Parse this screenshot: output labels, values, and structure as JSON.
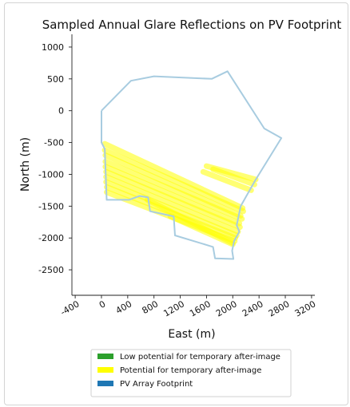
{
  "chart_data": {
    "type": "scatter",
    "title": "Sampled Annual Glare Reflections on PV Footprint",
    "xlabel": "East (m)",
    "ylabel": "North (m)",
    "xlim": [
      -450,
      3250
    ],
    "ylim": [
      -2900,
      1200
    ],
    "xticks": [
      -400,
      0,
      400,
      800,
      1200,
      1600,
      2000,
      2400,
      2800,
      3200
    ],
    "yticks": [
      1000,
      500,
      0,
      -500,
      -1000,
      -1500,
      -2000,
      -2500
    ],
    "grid": false,
    "legend_position": "bottom",
    "legend": [
      {
        "label": "Low potential for temporary after-image",
        "color": "#2ca02c"
      },
      {
        "label": "Potential for temporary after-image",
        "color": "#ffff00"
      },
      {
        "label": "PV Array Footprint",
        "color": "#1f77b4"
      }
    ],
    "footprint": {
      "name": "PV Array Footprint",
      "color": "#a8cce0",
      "points": [
        [
          0,
          0
        ],
        [
          450,
          470
        ],
        [
          800,
          540
        ],
        [
          1680,
          500
        ],
        [
          1920,
          620
        ],
        [
          2480,
          -280
        ],
        [
          2740,
          -430
        ],
        [
          2340,
          -1100
        ],
        [
          2120,
          -1500
        ],
        [
          2060,
          -1800
        ],
        [
          2100,
          -1900
        ],
        [
          2020,
          -2050
        ],
        [
          1990,
          -2200
        ],
        [
          2010,
          -2330
        ],
        [
          1730,
          -2320
        ],
        [
          1700,
          -2140
        ],
        [
          1120,
          -1960
        ],
        [
          1100,
          -1660
        ],
        [
          740,
          -1580
        ],
        [
          710,
          -1360
        ],
        [
          580,
          -1340
        ],
        [
          420,
          -1400
        ],
        [
          80,
          -1400
        ],
        [
          50,
          -600
        ],
        [
          0,
          -500
        ],
        [
          0,
          0
        ]
      ]
    },
    "glare_streaks": {
      "name": "Potential for temporary after-image",
      "color": "#ffff00",
      "segments": [
        [
          [
            50,
            -520
          ],
          [
            2150,
            -1530
          ]
        ],
        [
          [
            50,
            -620
          ],
          [
            2160,
            -1580
          ]
        ],
        [
          [
            60,
            -700
          ],
          [
            2120,
            -1650
          ]
        ],
        [
          [
            60,
            -800
          ],
          [
            2140,
            -1700
          ]
        ],
        [
          [
            60,
            -880
          ],
          [
            2100,
            -1770
          ]
        ],
        [
          [
            70,
            -960
          ],
          [
            2110,
            -1830
          ]
        ],
        [
          [
            70,
            -1040
          ],
          [
            2080,
            -1900
          ]
        ],
        [
          [
            70,
            -1120
          ],
          [
            2060,
            -1960
          ]
        ],
        [
          [
            80,
            -1200
          ],
          [
            2040,
            -2000
          ]
        ],
        [
          [
            80,
            -1280
          ],
          [
            2030,
            -2050
          ]
        ],
        [
          [
            700,
            -1400
          ],
          [
            2000,
            -2080
          ]
        ],
        [
          [
            1050,
            -1660
          ],
          [
            2000,
            -2100
          ]
        ],
        [
          [
            1600,
            -870
          ],
          [
            2350,
            -1080
          ]
        ],
        [
          [
            1700,
            -920
          ],
          [
            2330,
            -1160
          ]
        ],
        [
          [
            1550,
            -960
          ],
          [
            2280,
            -1250
          ]
        ]
      ]
    }
  }
}
